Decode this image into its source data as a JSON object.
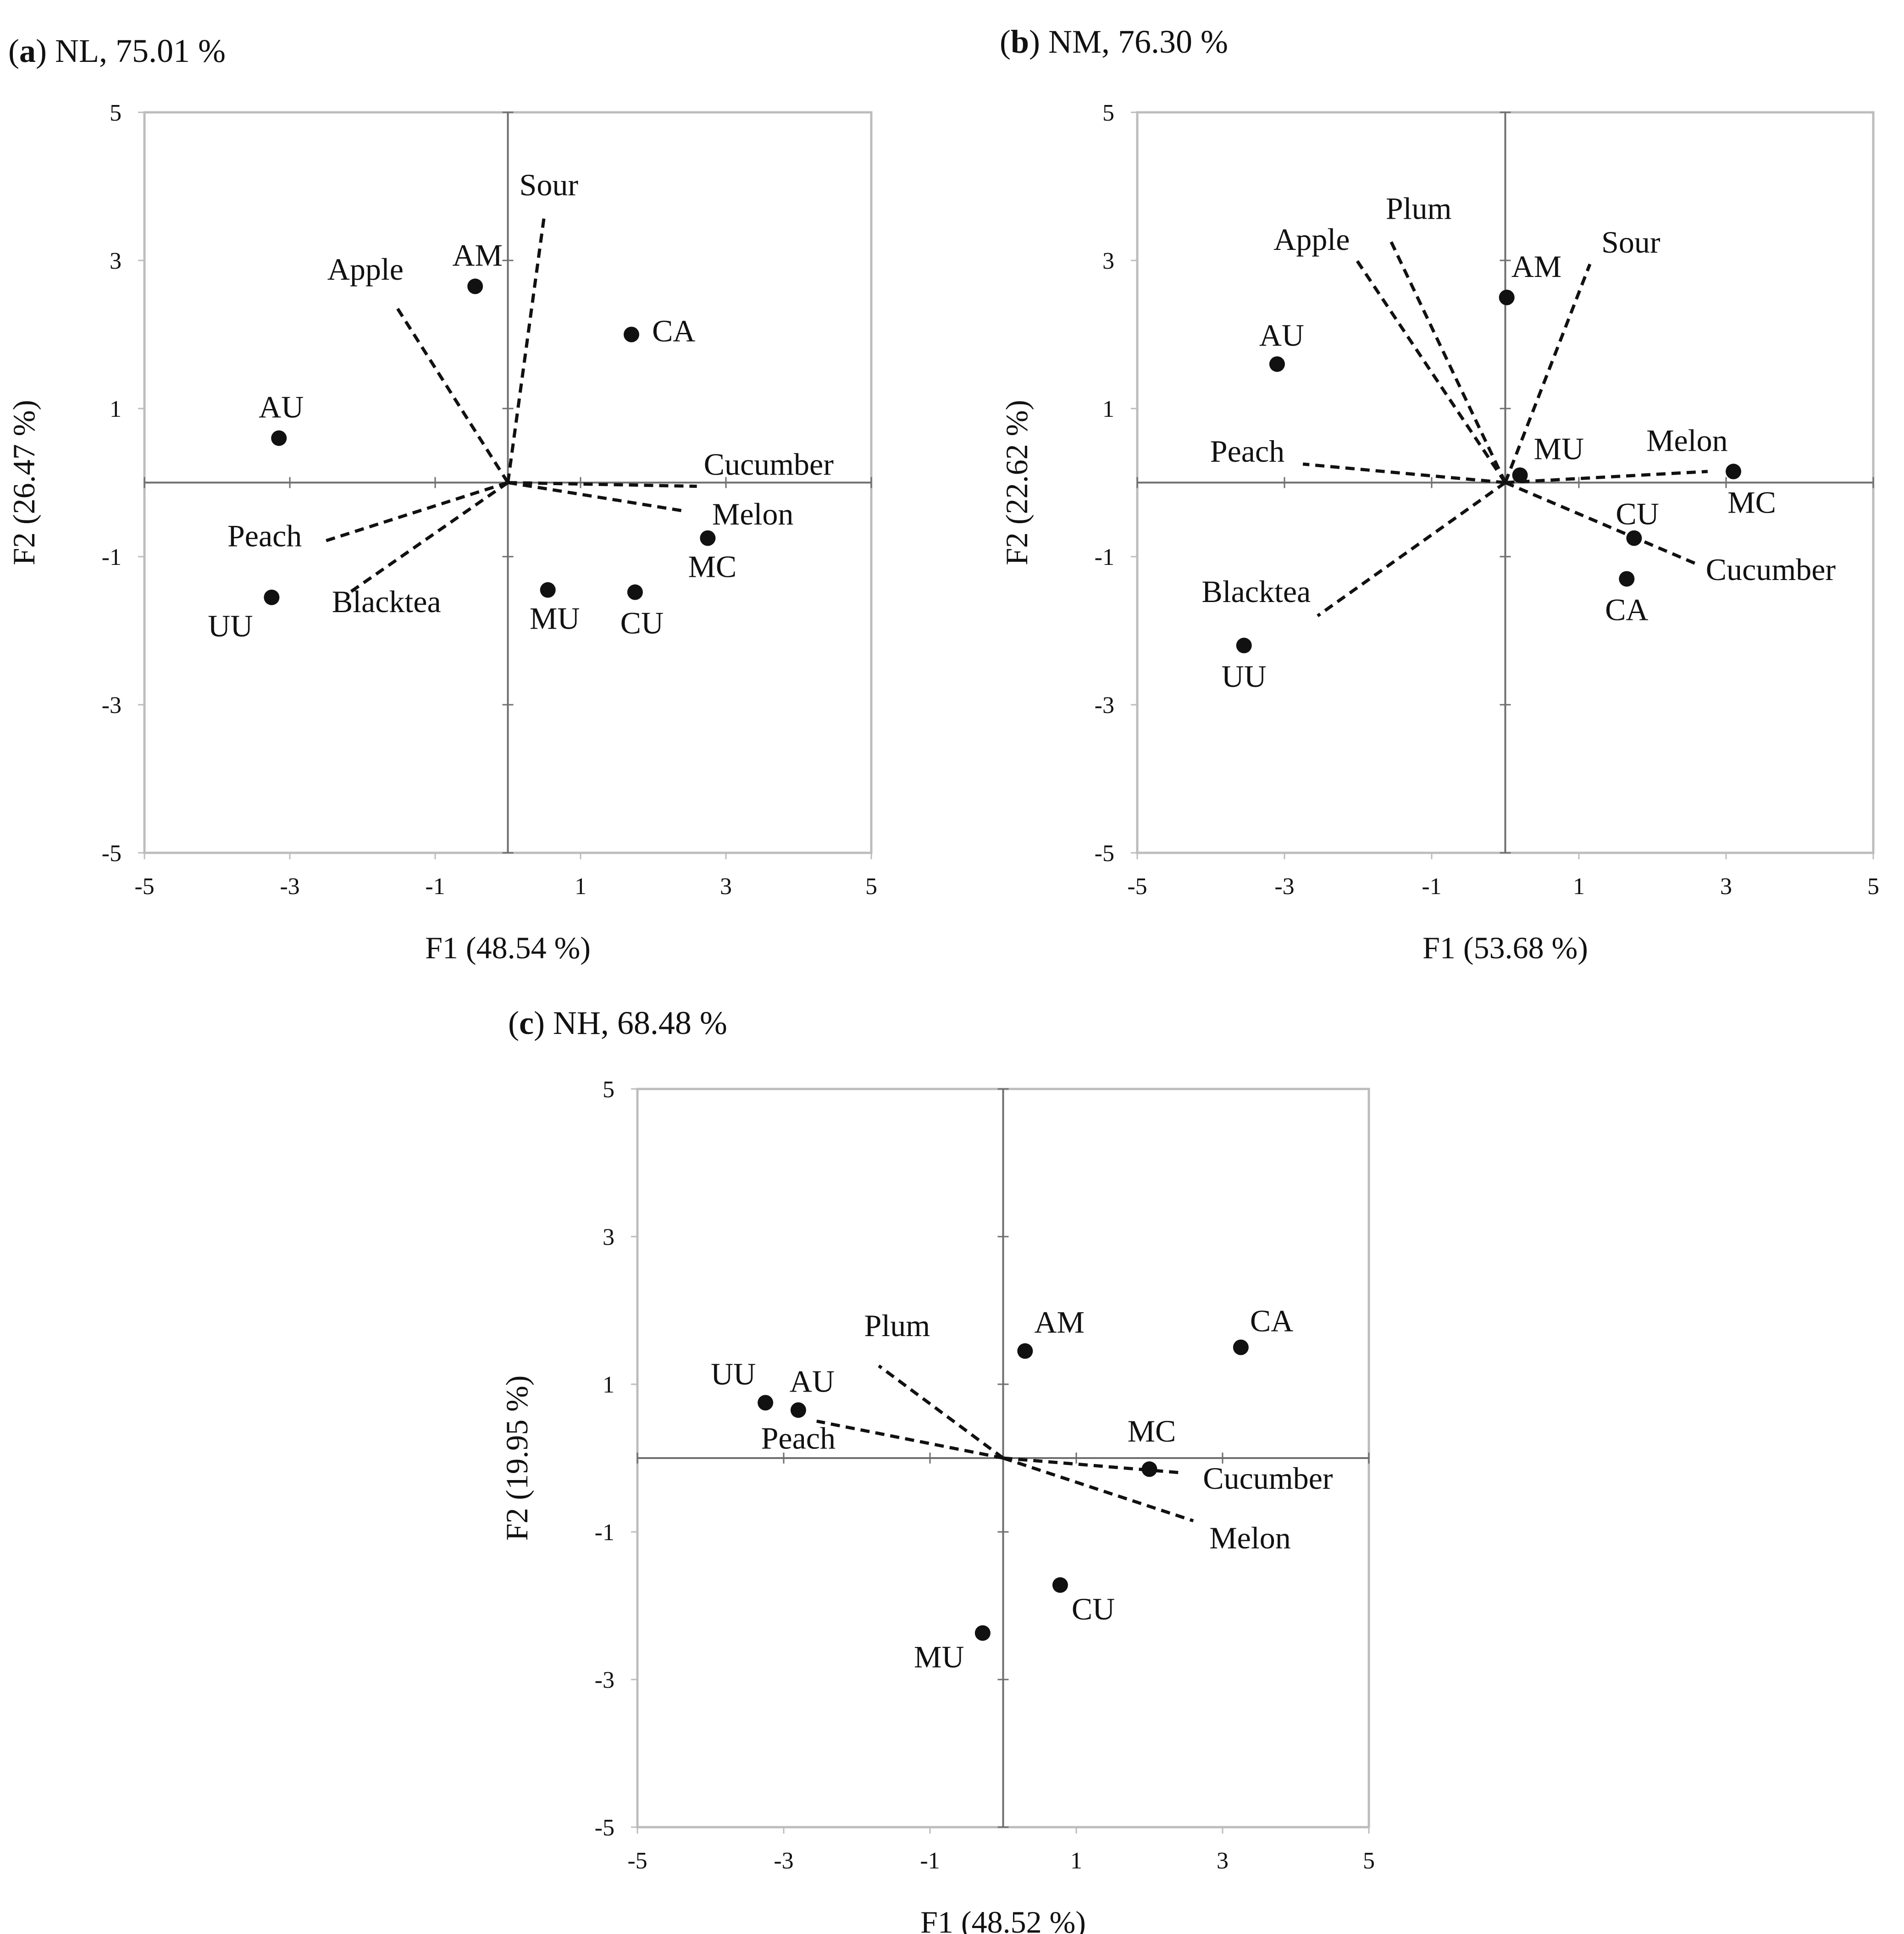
{
  "figure": {
    "colors": {
      "frame": "#bcbcbc",
      "axis": "#6e6e6e",
      "tick": "#6e6e6e",
      "vector": "#111111",
      "point": "#111111",
      "text": "#111111",
      "background": "#ffffff"
    }
  },
  "chart_data": [
    {
      "type": "scatter",
      "subtype": "pca-biplot",
      "panel_letter": "a",
      "title": "NL, 75.01 %",
      "xlabel": "F1 (48.54 %)",
      "ylabel": "F2 (26.47 %)",
      "xlim": [
        -5,
        5
      ],
      "ylim": [
        -5,
        5
      ],
      "xticks": [
        -5,
        -3,
        -1,
        1,
        3,
        5
      ],
      "yticks": [
        -5,
        -3,
        -1,
        1,
        3,
        5
      ],
      "grid": false,
      "points": [
        {
          "label": "AM",
          "x": -0.45,
          "y": 2.65
        },
        {
          "label": "CA",
          "x": 1.7,
          "y": 2.0
        },
        {
          "label": "AU",
          "x": -3.15,
          "y": 0.6
        },
        {
          "label": "MC",
          "x": 2.75,
          "y": -0.75
        },
        {
          "label": "UU",
          "x": -3.25,
          "y": -1.55
        },
        {
          "label": "MU",
          "x": 0.55,
          "y": -1.45
        },
        {
          "label": "CU",
          "x": 1.75,
          "y": -1.48
        }
      ],
      "vectors": [
        {
          "label": "Sour",
          "x": 0.5,
          "y": 3.6
        },
        {
          "label": "Apple",
          "x": -1.55,
          "y": 2.4
        },
        {
          "label": "Cucumber",
          "x": 2.6,
          "y": -0.05
        },
        {
          "label": "Melon",
          "x": 2.4,
          "y": -0.38
        },
        {
          "label": "Peach",
          "x": -2.55,
          "y": -0.8
        },
        {
          "label": "Blacktea",
          "x": -2.2,
          "y": -1.5
        }
      ]
    },
    {
      "type": "scatter",
      "subtype": "pca-biplot",
      "panel_letter": "b",
      "title": "NM, 76.30 %",
      "xlabel": "F1 (53.68 %)",
      "ylabel": "F2 (22.62 %)",
      "xlim": [
        -5,
        5
      ],
      "ylim": [
        -5,
        5
      ],
      "xticks": [
        -5,
        -3,
        -1,
        1,
        3,
        5
      ],
      "yticks": [
        -5,
        -3,
        -1,
        1,
        3,
        5
      ],
      "grid": false,
      "points": [
        {
          "label": "AM",
          "x": 0.02,
          "y": 2.5
        },
        {
          "label": "AU",
          "x": -3.1,
          "y": 1.6
        },
        {
          "label": "MU",
          "x": 0.2,
          "y": 0.1
        },
        {
          "label": "MC",
          "x": 3.1,
          "y": 0.15
        },
        {
          "label": "CU",
          "x": 1.75,
          "y": -0.75
        },
        {
          "label": "CA",
          "x": 1.65,
          "y": -1.3
        },
        {
          "label": "UU",
          "x": -3.55,
          "y": -2.2
        }
      ],
      "vectors": [
        {
          "label": "Apple",
          "x": -2.05,
          "y": 3.05
        },
        {
          "label": "Plum",
          "x": -1.55,
          "y": 3.25
        },
        {
          "label": "Sour",
          "x": 1.15,
          "y": 2.95
        },
        {
          "label": "Melon",
          "x": 2.75,
          "y": 0.15
        },
        {
          "label": "Peach",
          "x": -2.75,
          "y": 0.25
        },
        {
          "label": "Cucumber",
          "x": 2.6,
          "y": -1.1
        },
        {
          "label": "Blacktea",
          "x": -2.55,
          "y": -1.8
        }
      ]
    },
    {
      "type": "scatter",
      "subtype": "pca-biplot",
      "panel_letter": "c",
      "title": "NH, 68.48 %",
      "xlabel": "F1 (48.52 %)",
      "ylabel": "F2 (19.95 %)",
      "xlim": [
        -5,
        5
      ],
      "ylim": [
        -5,
        5
      ],
      "xticks": [
        -5,
        -3,
        -1,
        1,
        3,
        5
      ],
      "yticks": [
        -5,
        -3,
        -1,
        1,
        3,
        5
      ],
      "grid": false,
      "points": [
        {
          "label": "AM",
          "x": 0.3,
          "y": 1.45
        },
        {
          "label": "CA",
          "x": 3.25,
          "y": 1.5
        },
        {
          "label": "UU",
          "x": -3.25,
          "y": 0.75
        },
        {
          "label": "AU",
          "x": -2.8,
          "y": 0.65
        },
        {
          "label": "MC",
          "x": 2.0,
          "y": -0.15
        },
        {
          "label": "CU",
          "x": 0.78,
          "y": -1.72
        },
        {
          "label": "MU",
          "x": -0.28,
          "y": -2.37
        }
      ],
      "vectors": [
        {
          "label": "Plum",
          "x": -1.7,
          "y": 1.25
        },
        {
          "label": "Peach",
          "x": -2.55,
          "y": 0.5
        },
        {
          "label": "Cucumber",
          "x": 2.45,
          "y": -0.2
        },
        {
          "label": "Melon",
          "x": 2.6,
          "y": -0.85
        }
      ]
    }
  ]
}
